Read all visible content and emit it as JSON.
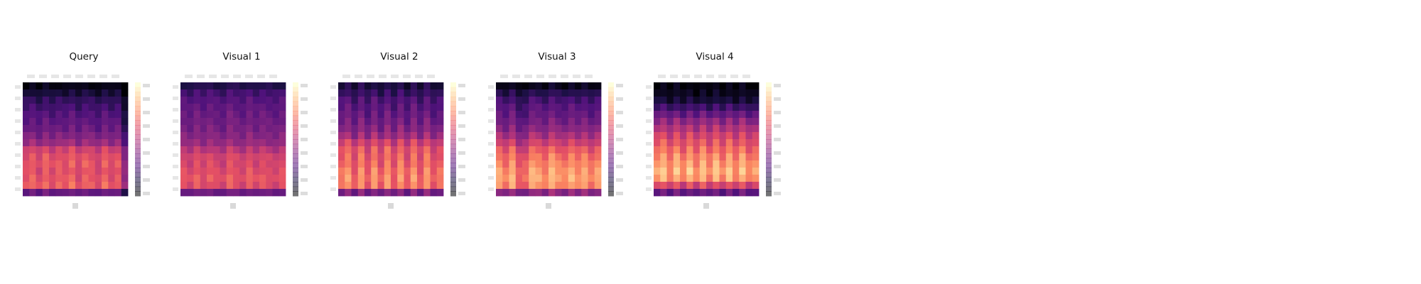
{
  "figure": {
    "panel_titles": [
      "Query",
      "Visual 1",
      "Visual 2",
      "Visual 3",
      "Visual 4"
    ]
  },
  "chart_data": [
    {
      "type": "heatmap",
      "title": "Query",
      "colormap": "magma",
      "rows": 16,
      "cols": 16,
      "row_profile": [
        0.03,
        0.1,
        0.17,
        0.21,
        0.25,
        0.28,
        0.31,
        0.36,
        0.42,
        0.55,
        0.6,
        0.62,
        0.6,
        0.62,
        0.64,
        0.3
      ],
      "col_variation": [
        0.0,
        0.05,
        -0.03,
        0.06,
        -0.02,
        0.04,
        0.0,
        0.07,
        -0.03,
        0.05,
        0.02,
        -0.04,
        0.06,
        -0.02,
        0.03,
        -0.2
      ],
      "axes_visible": false,
      "colorbar": true
    },
    {
      "type": "heatmap",
      "title": "Visual 1",
      "colormap": "magma",
      "rows": 16,
      "cols": 16,
      "row_profile": [
        0.14,
        0.22,
        0.26,
        0.29,
        0.31,
        0.33,
        0.35,
        0.38,
        0.42,
        0.5,
        0.57,
        0.58,
        0.6,
        0.63,
        0.6,
        0.32
      ],
      "col_variation": [
        0.02,
        -0.03,
        0.05,
        -0.02,
        0.04,
        0.0,
        -0.04,
        0.06,
        0.01,
        -0.03,
        0.05,
        -0.02,
        0.03,
        0.0,
        -0.03,
        0.02
      ],
      "axes_visible": false,
      "colorbar": true
    },
    {
      "type": "heatmap",
      "title": "Visual 2",
      "colormap": "magma",
      "rows": 16,
      "cols": 16,
      "row_profile": [
        0.12,
        0.18,
        0.24,
        0.27,
        0.3,
        0.33,
        0.37,
        0.43,
        0.55,
        0.62,
        0.64,
        0.66,
        0.7,
        0.72,
        0.7,
        0.35
      ],
      "col_variation": [
        0.0,
        0.08,
        -0.06,
        0.08,
        -0.06,
        0.08,
        -0.06,
        0.08,
        -0.06,
        0.08,
        -0.06,
        0.08,
        -0.06,
        0.08,
        -0.06,
        0.0
      ],
      "axes_visible": false,
      "colorbar": true
    },
    {
      "type": "heatmap",
      "title": "Visual 3",
      "colormap": "magma",
      "rows": 16,
      "cols": 16,
      "row_profile": [
        0.05,
        0.15,
        0.22,
        0.27,
        0.3,
        0.34,
        0.39,
        0.46,
        0.55,
        0.64,
        0.7,
        0.74,
        0.78,
        0.8,
        0.76,
        0.4
      ],
      "col_variation": [
        0.03,
        -0.05,
        0.06,
        -0.1,
        -0.08,
        0.05,
        0.02,
        -0.04,
        0.07,
        0.0,
        -0.03,
        0.05,
        -0.02,
        0.04,
        -0.05,
        0.02
      ],
      "axes_visible": false,
      "colorbar": true
    },
    {
      "type": "heatmap",
      "title": "Visual 4",
      "colormap": "magma",
      "rows": 16,
      "cols": 16,
      "row_profile": [
        0.02,
        0.05,
        0.1,
        0.2,
        0.3,
        0.4,
        0.48,
        0.56,
        0.62,
        0.68,
        0.74,
        0.78,
        0.82,
        0.78,
        0.58,
        0.3
      ],
      "col_variation": [
        0.0,
        0.07,
        -0.05,
        0.07,
        -0.05,
        0.07,
        -0.05,
        0.07,
        -0.05,
        0.07,
        -0.05,
        0.07,
        -0.05,
        0.07,
        -0.05,
        0.0
      ],
      "axes_visible": false,
      "colorbar": true
    }
  ]
}
